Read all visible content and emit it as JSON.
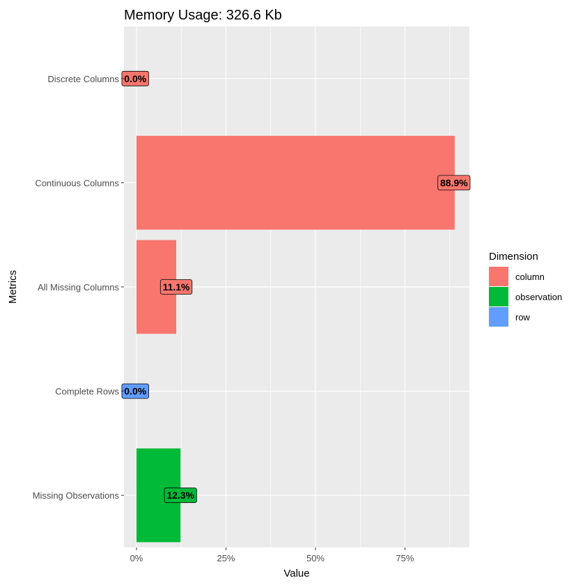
{
  "chart_data": {
    "type": "bar",
    "orientation": "horizontal",
    "title": "Memory Usage: 326.6 Kb",
    "xlabel": "Value",
    "ylabel": "Metrics",
    "xlim": [
      -0.035,
      0.93
    ],
    "xticks": [
      0,
      0.25,
      0.5,
      0.75
    ],
    "xtick_labels": [
      "0%",
      "25%",
      "50%",
      "75%"
    ],
    "grid": true,
    "categories": [
      "Missing Observations",
      "Complete Rows",
      "All Missing Columns",
      "Continuous Columns",
      "Discrete Columns"
    ],
    "values": [
      0.123,
      0.0,
      0.111,
      0.889,
      0.0
    ],
    "value_labels": [
      "12.3%",
      "0.0%",
      "11.1%",
      "88.9%",
      "0.0%"
    ],
    "groups": [
      "observation",
      "row",
      "column",
      "column",
      "column"
    ],
    "legend": {
      "title": "Dimension",
      "position": "right",
      "entries": [
        {
          "name": "column",
          "color": "#F8766D"
        },
        {
          "name": "observation",
          "color": "#00BA38"
        },
        {
          "name": "row",
          "color": "#619CFF"
        }
      ]
    },
    "colors": {
      "panel_background": "#EBEBEB",
      "grid_major": "#FFFFFF"
    }
  }
}
